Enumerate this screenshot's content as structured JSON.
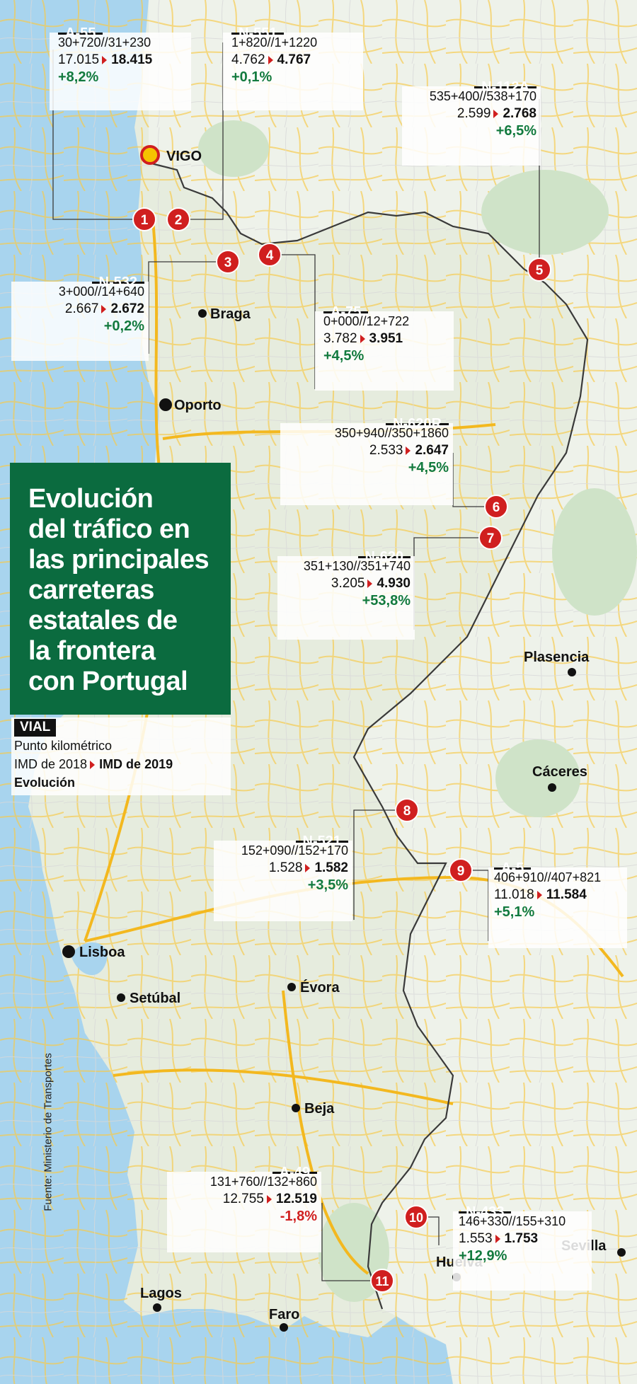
{
  "title": "Evolución del tráfico en las principales carreteras estatales de la frontera con Portugal",
  "title_lines": [
    "Evolución",
    "del tráfico en",
    "las principales",
    "carreteras",
    "estatales de",
    "la frontera",
    "con Portugal"
  ],
  "legend": {
    "tag": "VIAL",
    "line1": "Punto kilométrico",
    "line2_a": "IMD de 2018",
    "line2_b": "IMD de 2019",
    "line3": "Evolución"
  },
  "source": "Fuente: Ministerio de Transportes",
  "colors": {
    "title_bg": "#0b6b3f",
    "positive": "#127a3e",
    "negative": "#d01f1f",
    "marker": "#d01f1f",
    "sea": "#a8d4ee",
    "land_spain": "#eef2ea",
    "land_portugal": "#e6ecde",
    "forest": "#cfe3c8",
    "roads": "#f6c94a"
  },
  "cities": [
    {
      "name": "VIGO"
    },
    {
      "name": "Braga"
    },
    {
      "name": "Oporto"
    },
    {
      "name": "Plasencia"
    },
    {
      "name": "Cáceres"
    },
    {
      "name": "Lisboa"
    },
    {
      "name": "Setúbal"
    },
    {
      "name": "Évora"
    },
    {
      "name": "Beja"
    },
    {
      "name": "Sevilla"
    },
    {
      "name": "Huelva"
    },
    {
      "name": "Lagos"
    },
    {
      "name": "Faro"
    }
  ],
  "roads": [
    {
      "num": "1",
      "name": "A-55",
      "pk": "30+720//31+230",
      "imd_2018": "17.015",
      "imd_2019": "18.415",
      "evolucion": "+8,2%"
    },
    {
      "num": "2",
      "name": "N-551",
      "pk": "1+820//1+1220",
      "imd_2018": "4.762",
      "imd_2019": "4.767",
      "evolucion": "+0,1%"
    },
    {
      "num": "3",
      "name": "N-532",
      "pk": "3+000//14+640",
      "imd_2018": "2.667",
      "imd_2019": "2.672",
      "evolucion": "+0,2%"
    },
    {
      "num": "4",
      "name": "A-75",
      "pk": "0+000//12+722",
      "imd_2018": "3.782",
      "imd_2019": "3.951",
      "evolucion": "+4,5%"
    },
    {
      "num": "5",
      "name": "N-112A",
      "pk": "535+400//538+170",
      "imd_2018": "2.599",
      "imd_2019": "2.768",
      "evolucion": "+6,5%"
    },
    {
      "num": "6",
      "name": "N-620R",
      "pk": "350+940//350+1860",
      "imd_2018": "2.533",
      "imd_2019": "2.647",
      "evolucion": "+4,5%"
    },
    {
      "num": "7",
      "name": "N-620",
      "pk": "351+130//351+740",
      "imd_2018": "3.205",
      "imd_2019": "4.930",
      "evolucion": "+53,8%"
    },
    {
      "num": "8",
      "name": "N-521",
      "pk": "152+090//152+170",
      "imd_2018": "1.528",
      "imd_2019": "1.582",
      "evolucion": "+3,5%"
    },
    {
      "num": "9",
      "name": "A-5",
      "pk": "406+910//407+821",
      "imd_2018": "11.018",
      "imd_2019": "11.584",
      "evolucion": "+5,1%"
    },
    {
      "num": "10",
      "name": "N-433",
      "pk": "146+330//155+310",
      "imd_2018": "1.553",
      "imd_2019": "1.753",
      "evolucion": "+12,9%"
    },
    {
      "num": "11",
      "name": "A-49",
      "pk": "131+760//132+860",
      "imd_2018": "12.755",
      "imd_2019": "12.519",
      "evolucion": "-1,8%"
    }
  ]
}
